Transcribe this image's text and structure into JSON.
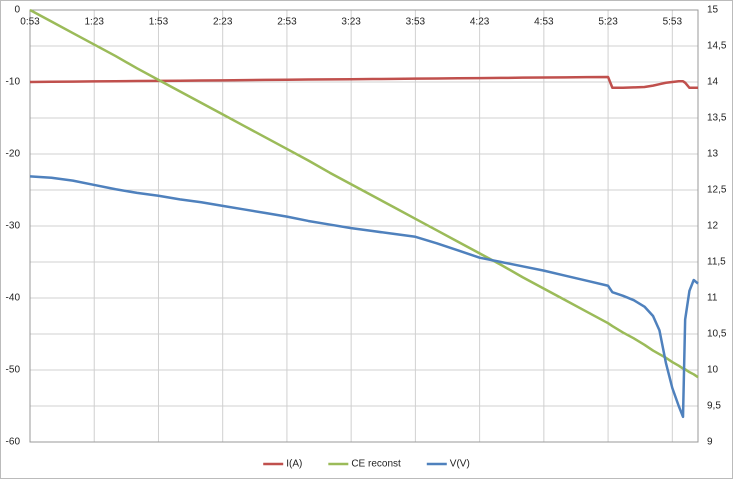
{
  "chart_data": {
    "type": "line",
    "x": [
      53,
      63,
      73,
      83,
      93,
      103,
      113,
      123,
      133,
      143,
      153,
      163,
      173,
      183,
      193,
      203,
      213,
      223,
      233,
      243,
      253,
      263,
      273,
      283,
      293,
      303,
      313,
      323,
      325,
      330,
      335,
      340,
      344,
      347,
      350,
      353,
      356,
      358,
      359,
      361,
      363,
      365
    ],
    "series": [
      {
        "name": "I(A)",
        "color": "#c0504d",
        "values": [
          -10,
          -9.97,
          -9.95,
          -9.92,
          -9.9,
          -9.87,
          -9.84,
          -9.82,
          -9.79,
          -9.77,
          -9.74,
          -9.71,
          -9.69,
          -9.66,
          -9.64,
          -9.61,
          -9.59,
          -9.56,
          -9.53,
          -9.51,
          -9.48,
          -9.46,
          -9.43,
          -9.4,
          -9.38,
          -9.35,
          -9.33,
          -9.3,
          -10.8,
          -10.8,
          -10.75,
          -10.7,
          -10.5,
          -10.3,
          -10.1,
          -10,
          -9.9,
          -9.9,
          -10.1,
          -10.8,
          -10.8,
          -10.8
        ]
      },
      {
        "name": "CE reconst",
        "color": "#9bbb59",
        "values": [
          0,
          -1.6,
          -3.2,
          -4.8,
          -6.4,
          -8.1,
          -9.7,
          -11.3,
          -12.9,
          -14.5,
          -16.1,
          -17.7,
          -19.3,
          -20.9,
          -22.6,
          -24.2,
          -25.8,
          -27.4,
          -29,
          -30.6,
          -32.2,
          -33.8,
          -35.4,
          -37.1,
          -38.7,
          -40.3,
          -41.9,
          -43.5,
          -43.9,
          -44.8,
          -45.6,
          -46.5,
          -47.3,
          -47.8,
          -48.3,
          -48.9,
          -49.4,
          -49.8,
          -49.9,
          -50.3,
          -50.6,
          -51
        ]
      },
      {
        "name": "V(V)",
        "color": "#4f81bd",
        "axis": "y2",
        "values": [
          12.69,
          12.67,
          12.63,
          12.57,
          12.51,
          12.46,
          12.42,
          12.37,
          12.33,
          12.28,
          12.23,
          12.18,
          12.13,
          12.07,
          12.02,
          11.97,
          11.93,
          11.89,
          11.85,
          11.76,
          11.66,
          11.56,
          11.5,
          11.44,
          11.38,
          11.31,
          11.24,
          11.17,
          11.08,
          11.03,
          10.97,
          10.88,
          10.75,
          10.55,
          10.1,
          9.75,
          9.5,
          9.35,
          10.7,
          11.1,
          11.25,
          11.2
        ]
      }
    ],
    "xlim": [
      53,
      365
    ],
    "xticks": [
      {
        "value": 53,
        "label": "0:53"
      },
      {
        "value": 83,
        "label": "1:23"
      },
      {
        "value": 113,
        "label": "1:53"
      },
      {
        "value": 143,
        "label": "2:23"
      },
      {
        "value": 173,
        "label": "2:53"
      },
      {
        "value": 203,
        "label": "3:23"
      },
      {
        "value": 233,
        "label": "3:53"
      },
      {
        "value": 263,
        "label": "4:23"
      },
      {
        "value": 293,
        "label": "4:53"
      },
      {
        "value": 323,
        "label": "5:23"
      },
      {
        "value": 353,
        "label": "5:53"
      }
    ],
    "ylim": [
      -60,
      0
    ],
    "yticks": [
      0,
      -10,
      -20,
      -30,
      -40,
      -50,
      -60
    ],
    "y2lim": [
      9,
      15
    ],
    "y2ticks": [
      9,
      {
        "value": 9.5,
        "label": "9,5"
      },
      10,
      {
        "value": 10.5,
        "label": "10,5"
      },
      11,
      {
        "value": 11.5,
        "label": "11,5"
      },
      12,
      {
        "value": 12.5,
        "label": "12,5"
      },
      13,
      {
        "value": 13.5,
        "label": "13,5"
      },
      14,
      {
        "value": 14.5,
        "label": "14,5"
      },
      15
    ],
    "grid": true,
    "legend": "bottom"
  }
}
